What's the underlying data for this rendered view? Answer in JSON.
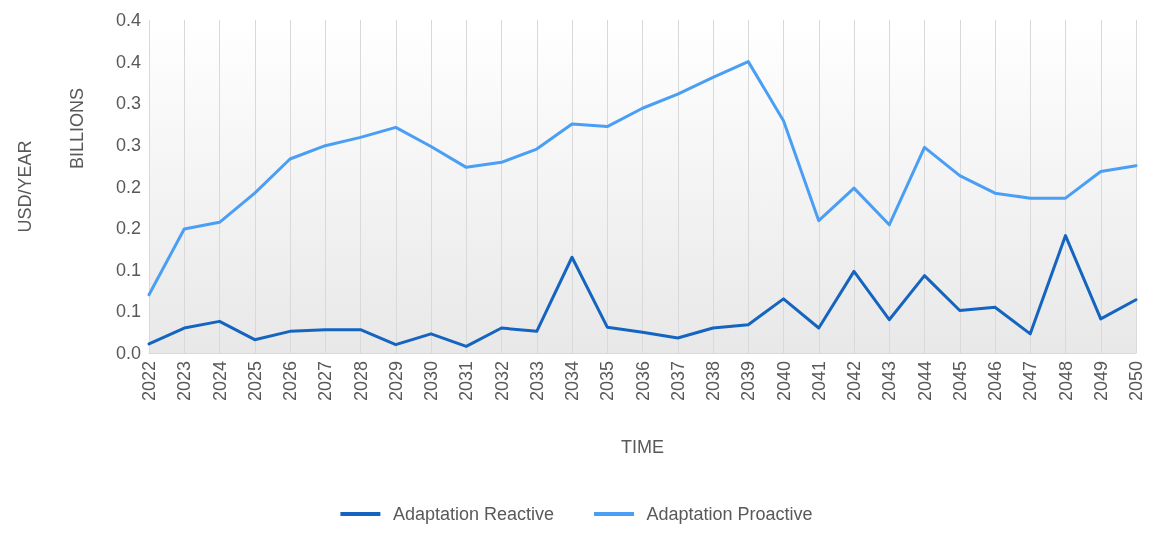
{
  "chart_data": {
    "type": "line",
    "xlabel": "TIME",
    "ylabel": "USD/YEAR",
    "annotations": [
      "BILLIONS"
    ],
    "categories": [
      "2022",
      "2023",
      "2024",
      "2025",
      "2026",
      "2027",
      "2028",
      "2029",
      "2030",
      "2031",
      "2032",
      "2033",
      "2034",
      "2035",
      "2036",
      "2037",
      "2038",
      "2039",
      "2040",
      "2041",
      "2042",
      "2043",
      "2044",
      "2045",
      "2046",
      "2047",
      "2048",
      "2049",
      "2050"
    ],
    "series": [
      {
        "name": "Adaptation Reactive",
        "color": "#1565c0",
        "values": [
          0.011,
          0.03,
          0.038,
          0.016,
          0.026,
          0.028,
          0.028,
          0.01,
          0.023,
          0.008,
          0.03,
          0.026,
          0.115,
          0.031,
          0.025,
          0.018,
          0.03,
          0.034,
          0.065,
          0.03,
          0.098,
          0.04,
          0.093,
          0.051,
          0.055,
          0.023,
          0.141,
          0.041,
          0.064
        ]
      },
      {
        "name": "Adaptation Proactive",
        "color": "#4a9ff5",
        "values": [
          0.07,
          0.149,
          0.157,
          0.192,
          0.233,
          0.249,
          0.259,
          0.271,
          0.248,
          0.223,
          0.229,
          0.245,
          0.275,
          0.272,
          0.294,
          0.311,
          0.331,
          0.35,
          0.279,
          0.159,
          0.198,
          0.154,
          0.247,
          0.213,
          0.192,
          0.186,
          0.186,
          0.218,
          0.225
        ]
      }
    ],
    "ylim": [
      0,
      0.4
    ],
    "yticks": [
      {
        "value": 0,
        "label": "0.0"
      },
      {
        "value": 0.05,
        "label": "0.1"
      },
      {
        "value": 0.1,
        "label": "0.1"
      },
      {
        "value": 0.15,
        "label": "0.2"
      },
      {
        "value": 0.2,
        "label": "0.2"
      },
      {
        "value": 0.25,
        "label": "0.3"
      },
      {
        "value": 0.3,
        "label": "0.3"
      },
      {
        "value": 0.35,
        "label": "0.4"
      },
      {
        "value": 0.4,
        "label": "0.4"
      }
    ],
    "grid": "x",
    "legend": "bottom",
    "marker": "none",
    "line_style": "solid"
  }
}
